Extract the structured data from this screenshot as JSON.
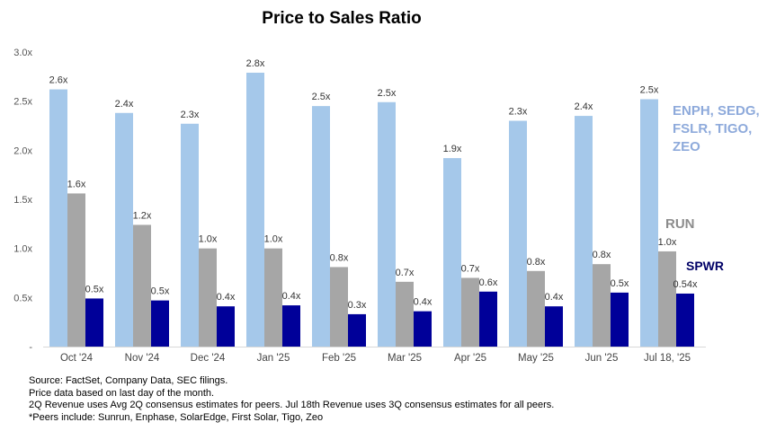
{
  "chart_data": {
    "type": "bar",
    "title": "Price to Sales Ratio",
    "categories": [
      "Oct '24",
      "Nov '24",
      "Dec '24",
      "Jan '25",
      "Feb '25",
      "Mar '25",
      "Apr '25",
      "May '25",
      "Jun '25",
      "Jul 18, '25"
    ],
    "ylim": [
      0,
      3.0
    ],
    "yticks": [
      "-",
      "0.5x",
      "1.0x",
      "1.5x",
      "2.0x",
      "2.5x",
      "3.0x"
    ],
    "grid": false,
    "legend_placement": "right",
    "series": [
      {
        "name": "ENPH, SEDG, FSLR, TIGO, ZEO",
        "color": "#a5c8ea",
        "values": [
          2.62,
          2.38,
          2.27,
          2.79,
          2.45,
          2.49,
          1.92,
          2.3,
          2.35,
          2.52
        ],
        "labels": [
          "2.6x",
          "2.4x",
          "2.3x",
          "2.8x",
          "2.5x",
          "2.5x",
          "1.9x",
          "2.3x",
          "2.4x",
          "2.5x"
        ]
      },
      {
        "name": "RUN",
        "color": "#a6a6a6",
        "values": [
          1.56,
          1.24,
          1.0,
          1.0,
          0.81,
          0.66,
          0.7,
          0.77,
          0.84,
          0.97
        ],
        "labels": [
          "1.6x",
          "1.2x",
          "1.0x",
          "1.0x",
          "0.8x",
          "0.7x",
          "0.7x",
          "0.8x",
          "0.8x",
          "1.0x"
        ]
      },
      {
        "name": "SPWR",
        "color": "#000099",
        "values": [
          0.49,
          0.47,
          0.41,
          0.42,
          0.33,
          0.36,
          0.56,
          0.41,
          0.55,
          0.54
        ],
        "labels": [
          "0.5x",
          "0.5x",
          "0.4x",
          "0.4x",
          "0.3x",
          "0.4x",
          "0.6x",
          "0.4x",
          "0.5x",
          "0.54x"
        ]
      }
    ]
  },
  "notes": [
    "Source:  FactSet, Company Data, SEC filings.",
    "Price data based on last day of the month.",
    "2Q Revenue uses Avg 2Q consensus estimates for peers. Jul 18th Revenue uses 3Q consensus estimates for all peers.",
    "*Peers include: Sunrun, Enphase, SolarEdge, First Solar, Tigo, Zeo"
  ]
}
